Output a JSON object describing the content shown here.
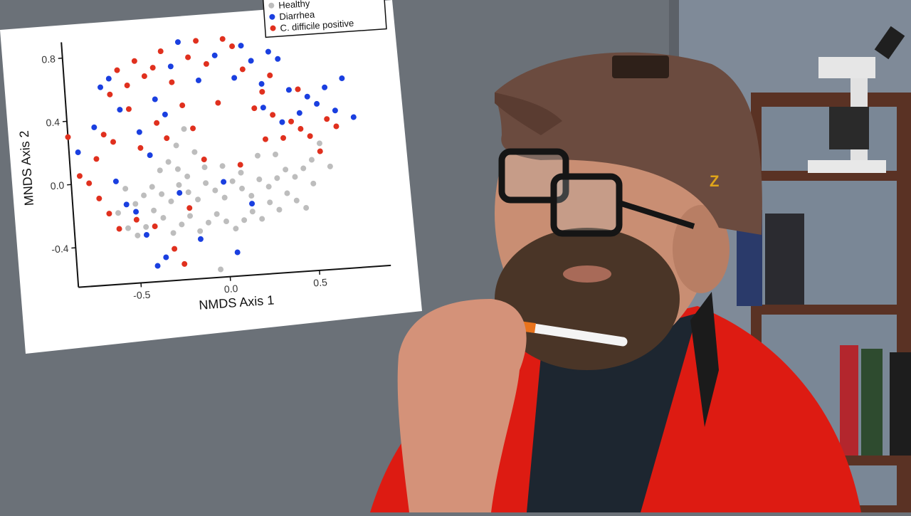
{
  "chart_data": {
    "type": "scatter",
    "title": "",
    "xlabel": "NMDS Axis 1",
    "ylabel": "MNDS Axis 2",
    "xlim": [
      -0.85,
      0.9
    ],
    "ylim": [
      -0.65,
      0.9
    ],
    "x_ticks": [
      -0.5,
      0.0,
      0.5
    ],
    "x_tick_labels": [
      "-0.5",
      "0.0",
      "0.5"
    ],
    "y_ticks": [
      -0.4,
      0.0,
      0.4,
      0.8
    ],
    "y_tick_labels": [
      "-0.4",
      "0.0",
      "0.4",
      "0.8"
    ],
    "grid": false,
    "legend_position": "top-right",
    "series": [
      {
        "name": "Healthy",
        "color": "#bdbdbd",
        "points": [
          [
            -0.55,
            -0.3
          ],
          [
            -0.5,
            -0.35
          ],
          [
            -0.45,
            -0.3
          ],
          [
            -0.4,
            -0.2
          ],
          [
            -0.35,
            -0.25
          ],
          [
            -0.3,
            -0.35
          ],
          [
            -0.25,
            -0.3
          ],
          [
            -0.2,
            -0.25
          ],
          [
            -0.15,
            -0.35
          ],
          [
            -0.1,
            -0.3
          ],
          [
            -0.05,
            -0.25
          ],
          [
            0.0,
            -0.3
          ],
          [
            0.05,
            -0.35
          ],
          [
            0.1,
            -0.3
          ],
          [
            0.15,
            -0.25
          ],
          [
            0.2,
            -0.3
          ],
          [
            0.25,
            -0.2
          ],
          [
            0.3,
            -0.25
          ],
          [
            0.35,
            -0.15
          ],
          [
            0.4,
            -0.2
          ],
          [
            -0.5,
            -0.15
          ],
          [
            -0.45,
            -0.1
          ],
          [
            -0.4,
            -0.05
          ],
          [
            -0.35,
            -0.1
          ],
          [
            -0.3,
            -0.15
          ],
          [
            -0.25,
            -0.05
          ],
          [
            -0.2,
            -0.1
          ],
          [
            -0.15,
            -0.15
          ],
          [
            -0.1,
            -0.05
          ],
          [
            -0.05,
            -0.1
          ],
          [
            0.0,
            -0.15
          ],
          [
            0.05,
            -0.05
          ],
          [
            0.1,
            -0.1
          ],
          [
            0.15,
            -0.15
          ],
          [
            0.2,
            -0.05
          ],
          [
            0.25,
            -0.1
          ],
          [
            0.3,
            -0.05
          ],
          [
            0.35,
            0.0
          ],
          [
            0.4,
            -0.05
          ],
          [
            0.45,
            0.0
          ],
          [
            -0.35,
            0.05
          ],
          [
            -0.3,
            0.1
          ],
          [
            -0.25,
            0.05
          ],
          [
            -0.2,
            0.0
          ],
          [
            -0.1,
            0.05
          ],
          [
            0.0,
            0.05
          ],
          [
            0.1,
            0.0
          ],
          [
            0.2,
            0.1
          ],
          [
            0.3,
            0.1
          ],
          [
            0.5,
            0.05
          ],
          [
            -0.2,
            0.3
          ],
          [
            -0.25,
            0.2
          ],
          [
            -0.15,
            0.15
          ],
          [
            0.55,
            0.15
          ],
          [
            0.6,
            0.0
          ],
          [
            0.5,
            -0.1
          ],
          [
            0.45,
            -0.25
          ],
          [
            -0.6,
            -0.2
          ],
          [
            -0.55,
            -0.05
          ],
          [
            -0.05,
            -0.6
          ]
        ]
      },
      {
        "name": "Diarrhea",
        "color": "#1a3fe0",
        "points": [
          [
            -0.8,
            0.2
          ],
          [
            -0.7,
            0.35
          ],
          [
            -0.65,
            0.6
          ],
          [
            -0.6,
            0.65
          ],
          [
            -0.55,
            0.45
          ],
          [
            -0.45,
            0.3
          ],
          [
            -0.4,
            0.15
          ],
          [
            -0.35,
            0.5
          ],
          [
            -0.3,
            0.4
          ],
          [
            -0.25,
            0.7
          ],
          [
            -0.2,
            0.85
          ],
          [
            -0.1,
            0.6
          ],
          [
            0.0,
            0.75
          ],
          [
            0.1,
            0.6
          ],
          [
            0.15,
            0.8
          ],
          [
            0.2,
            0.7
          ],
          [
            0.25,
            0.55
          ],
          [
            0.3,
            0.75
          ],
          [
            0.35,
            0.7
          ],
          [
            0.4,
            0.5
          ],
          [
            0.45,
            0.35
          ],
          [
            0.5,
            0.45
          ],
          [
            0.55,
            0.4
          ],
          [
            0.6,
            0.5
          ],
          [
            0.65,
            0.35
          ],
          [
            0.7,
            0.55
          ],
          [
            0.75,
            0.3
          ],
          [
            0.35,
            0.3
          ],
          [
            0.25,
            0.4
          ],
          [
            -0.5,
            -0.2
          ],
          [
            -0.55,
            -0.15
          ],
          [
            -0.45,
            -0.35
          ],
          [
            -0.4,
            -0.55
          ],
          [
            -0.35,
            -0.5
          ],
          [
            -0.25,
            -0.1
          ],
          [
            -0.15,
            -0.4
          ],
          [
            0.0,
            -0.05
          ],
          [
            0.05,
            -0.5
          ],
          [
            0.15,
            -0.2
          ],
          [
            -0.6,
            0.0
          ]
        ]
      },
      {
        "name": "C. difficile positive",
        "color": "#e0301e",
        "points": [
          [
            -0.85,
            0.3
          ],
          [
            -0.8,
            0.05
          ],
          [
            -0.75,
            0.0
          ],
          [
            -0.7,
            0.15
          ],
          [
            -0.65,
            0.3
          ],
          [
            -0.6,
            0.55
          ],
          [
            -0.55,
            0.7
          ],
          [
            -0.5,
            0.6
          ],
          [
            -0.45,
            0.75
          ],
          [
            -0.4,
            0.65
          ],
          [
            -0.35,
            0.7
          ],
          [
            -0.3,
            0.8
          ],
          [
            -0.25,
            0.6
          ],
          [
            -0.2,
            0.45
          ],
          [
            -0.15,
            0.75
          ],
          [
            -0.1,
            0.85
          ],
          [
            -0.05,
            0.7
          ],
          [
            0.05,
            0.85
          ],
          [
            0.1,
            0.8
          ],
          [
            0.15,
            0.65
          ],
          [
            0.2,
            0.4
          ],
          [
            0.25,
            0.2
          ],
          [
            0.3,
            0.35
          ],
          [
            0.35,
            0.2
          ],
          [
            0.4,
            0.3
          ],
          [
            0.45,
            0.25
          ],
          [
            0.5,
            0.2
          ],
          [
            0.55,
            0.1
          ],
          [
            0.6,
            0.3
          ],
          [
            0.65,
            0.25
          ],
          [
            -0.7,
            -0.1
          ],
          [
            -0.65,
            -0.2
          ],
          [
            -0.6,
            -0.3
          ],
          [
            -0.5,
            -0.25
          ],
          [
            -0.4,
            -0.3
          ],
          [
            -0.3,
            -0.45
          ],
          [
            -0.25,
            -0.55
          ],
          [
            -0.2,
            -0.2
          ],
          [
            -0.1,
            0.1
          ],
          [
            0.1,
            0.05
          ],
          [
            -0.45,
            0.2
          ],
          [
            -0.3,
            0.25
          ],
          [
            -0.15,
            0.3
          ],
          [
            0.0,
            0.45
          ],
          [
            0.25,
            0.5
          ],
          [
            0.45,
            0.5
          ],
          [
            -0.6,
            0.25
          ],
          [
            -0.5,
            0.45
          ],
          [
            -0.35,
            0.35
          ],
          [
            0.3,
            0.6
          ]
        ]
      }
    ]
  }
}
